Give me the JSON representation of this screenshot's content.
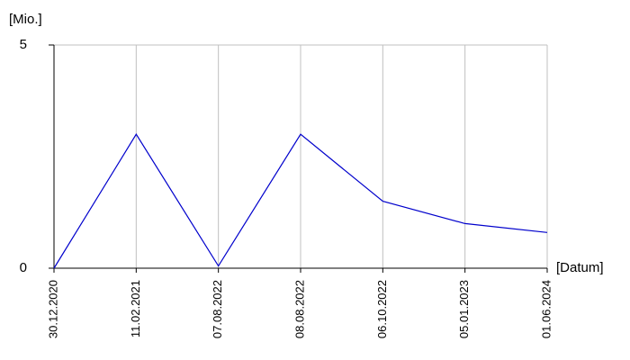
{
  "chart_data": {
    "type": "line",
    "y_label": "[Mio.]",
    "x_label": "[Datum]",
    "categories": [
      "30.12.2020",
      "11.02.2021",
      "07.08.2022",
      "08.08.2022",
      "06.10.2022",
      "05.01.2023",
      "01.06.2024"
    ],
    "values": [
      0,
      3,
      0.05,
      3,
      1.5,
      1.0,
      0.8
    ],
    "color": "#0000cc",
    "ylim": [
      0,
      5
    ],
    "yticks": [
      0,
      5
    ],
    "grid": true
  }
}
